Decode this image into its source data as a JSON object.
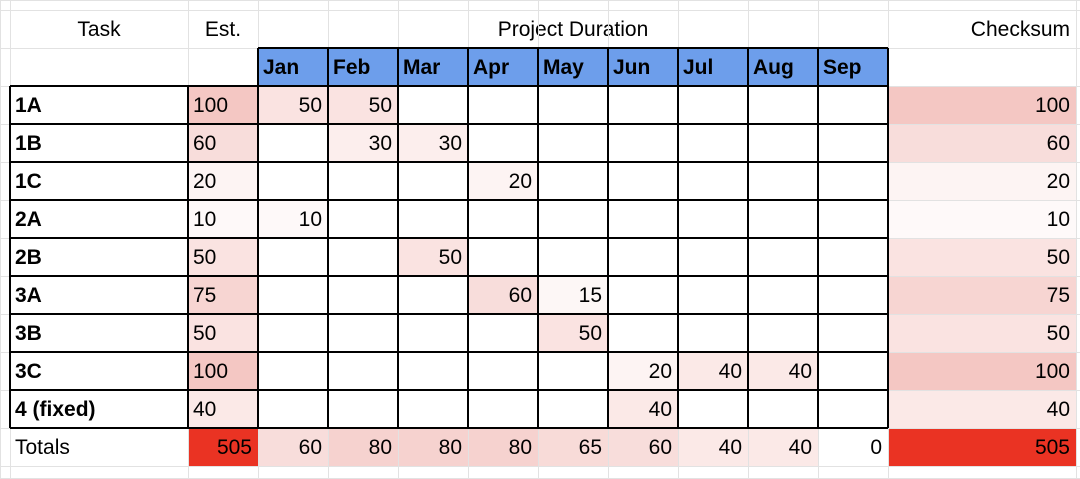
{
  "header": {
    "task": "Task",
    "est": "Est.",
    "duration": "Project Duration",
    "checksum": "Checksum"
  },
  "months": [
    "Jan",
    "Feb",
    "Mar",
    "Apr",
    "May",
    "Jun",
    "Jul",
    "Aug",
    "Sep"
  ],
  "rows": [
    {
      "task": "1A",
      "est": "100",
      "cells": [
        "50",
        "50",
        "",
        "",
        "",
        "",
        "",
        "",
        ""
      ],
      "checksum": "100"
    },
    {
      "task": "1B",
      "est": "60",
      "cells": [
        "",
        "30",
        "30",
        "",
        "",
        "",
        "",
        "",
        ""
      ],
      "checksum": "60"
    },
    {
      "task": "1C",
      "est": "20",
      "cells": [
        "",
        "",
        "",
        "20",
        "",
        "",
        "",
        "",
        ""
      ],
      "checksum": "20"
    },
    {
      "task": "2A",
      "est": "10",
      "cells": [
        "10",
        "",
        "",
        "",
        "",
        "",
        "",
        "",
        ""
      ],
      "checksum": "10"
    },
    {
      "task": "2B",
      "est": "50",
      "cells": [
        "",
        "",
        "50",
        "",
        "",
        "",
        "",
        "",
        ""
      ],
      "checksum": "50"
    },
    {
      "task": "3A",
      "est": "75",
      "cells": [
        "",
        "",
        "",
        "60",
        "15",
        "",
        "",
        "",
        ""
      ],
      "checksum": "75"
    },
    {
      "task": "3B",
      "est": "50",
      "cells": [
        "",
        "",
        "",
        "",
        "50",
        "",
        "",
        "",
        ""
      ],
      "checksum": "50"
    },
    {
      "task": "3C",
      "est": "100",
      "cells": [
        "",
        "",
        "",
        "",
        "",
        "20",
        "40",
        "40",
        ""
      ],
      "checksum": "100"
    },
    {
      "task": "4 (fixed)",
      "est": "40",
      "cells": [
        "",
        "",
        "",
        "",
        "",
        "40",
        "",
        "",
        ""
      ],
      "checksum": "40"
    }
  ],
  "totals": {
    "label": "Totals",
    "est": "505",
    "months": [
      "60",
      "80",
      "80",
      "80",
      "65",
      "60",
      "40",
      "40",
      "0"
    ],
    "checksum": "505"
  },
  "colors": {
    "month_header_bg": "#6d9eeb",
    "heat_low": "#ffffff",
    "heat_high": "#f4c7c3",
    "total_highlight": "#ea3323",
    "grid_light": "#e2e2e2",
    "border_dark": "#000000"
  }
}
